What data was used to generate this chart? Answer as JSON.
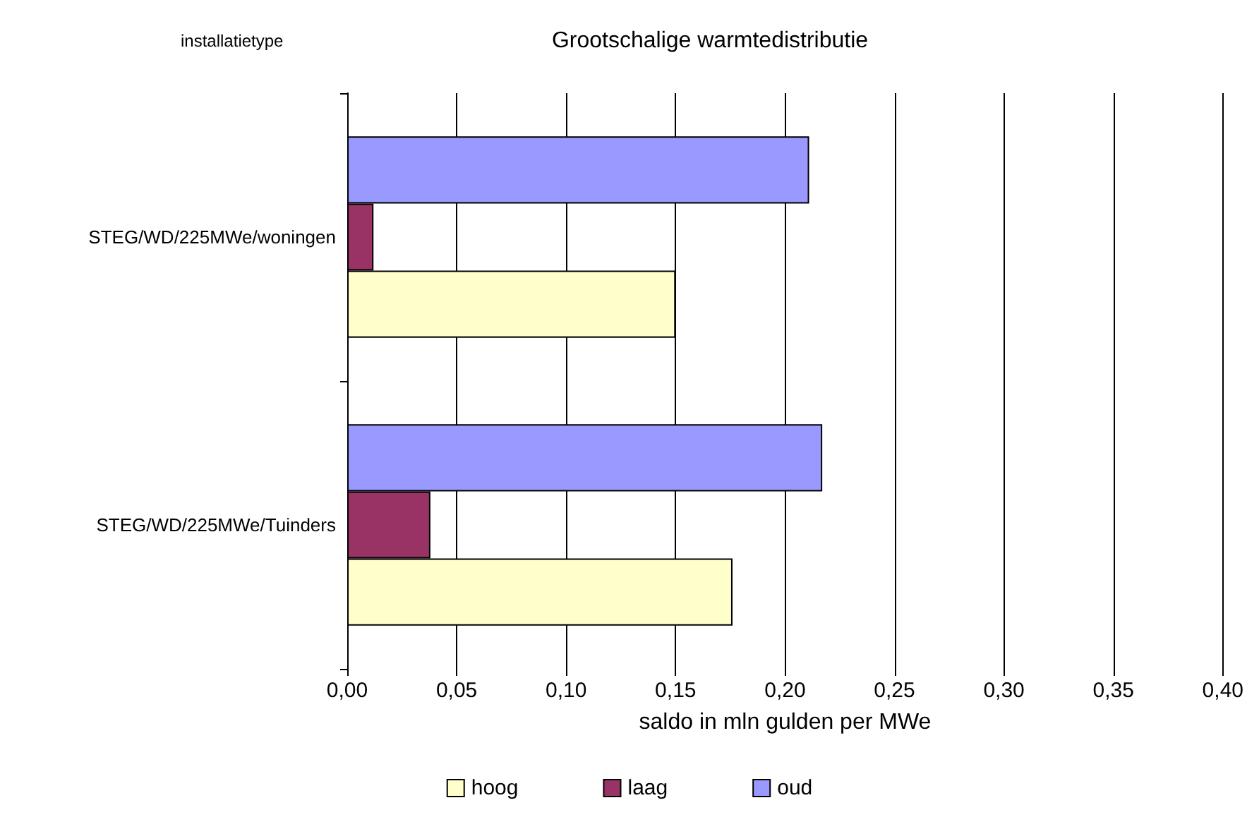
{
  "chart_data": {
    "type": "bar",
    "orientation": "horizontal",
    "title": "Grootschalige warmtedistributie",
    "ylabel": "installatietype",
    "xlabel": "saldo in mln gulden per MWe",
    "categories": [
      "STEG/WD/225MWe/woningen",
      "STEG/WD/225MWe/Tuinders"
    ],
    "series": [
      {
        "name": "hoog",
        "color": "#ffffcc",
        "values": [
          0.15,
          0.176
        ]
      },
      {
        "name": "laag",
        "color": "#993366",
        "values": [
          0.012,
          0.038
        ]
      },
      {
        "name": "oud",
        "color": "#9999ff",
        "values": [
          0.211,
          0.217
        ]
      }
    ],
    "xlim": [
      0,
      0.4
    ],
    "xticks": [
      {
        "value": 0,
        "label": "0,00"
      },
      {
        "value": 0.05,
        "label": "0,05"
      },
      {
        "value": 0.1,
        "label": "0,10"
      },
      {
        "value": 0.15,
        "label": "0,15"
      },
      {
        "value": 0.2,
        "label": "0,20"
      },
      {
        "value": 0.25,
        "label": "0,25"
      },
      {
        "value": 0.3,
        "label": "0,30"
      },
      {
        "value": 0.35,
        "label": "0,35"
      },
      {
        "value": 0.4,
        "label": "0,40"
      }
    ],
    "grid": "x",
    "legend": "bottom"
  }
}
